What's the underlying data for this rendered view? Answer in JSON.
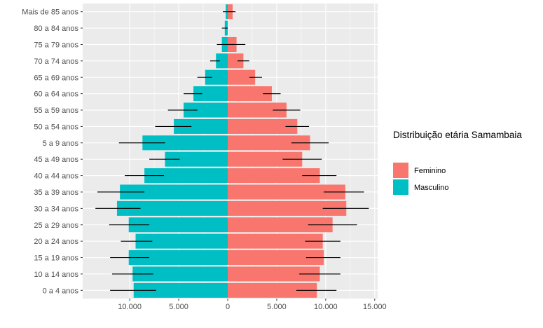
{
  "chart_data": {
    "type": "bar",
    "orientation": "horizontal",
    "categories": [
      "0 a 4 anos",
      "10 a 14 anos",
      "15 a 19 anos",
      "20 a 24 anos",
      "25 a 29 anos",
      "30 a 34 anos",
      "35 a 39 anos",
      "40 a 44 anos",
      "45 a 49 anos",
      "5 a 9 anos",
      "50 a 54 anos",
      "55 a 59 anos",
      "60 a 64 anos",
      "65 a 69 anos",
      "70 a 74 anos",
      "75 a 79 anos",
      "80 a 84 anos",
      "Mais de 85 anos"
    ],
    "series": [
      {
        "name": "Feminino",
        "color": "#F8766D",
        "values": [
          9100,
          9400,
          9800,
          9700,
          10700,
          12100,
          12000,
          9400,
          7600,
          8400,
          7100,
          6000,
          4500,
          2800,
          1600,
          900,
          0,
          500
        ],
        "error_low": [
          7000,
          7300,
          8000,
          7900,
          8200,
          9700,
          9800,
          7600,
          5600,
          6500,
          5900,
          4600,
          3600,
          2200,
          1000,
          0,
          0,
          0
        ],
        "error_high": [
          11100,
          11500,
          11500,
          11500,
          13200,
          14400,
          13900,
          11100,
          9600,
          10300,
          8300,
          7400,
          5400,
          3500,
          2200,
          1800,
          0,
          800
        ]
      },
      {
        "name": "Masculino",
        "color": "#00BFC4",
        "values": [
          9600,
          9700,
          10100,
          9400,
          10100,
          11300,
          11000,
          8500,
          6400,
          8700,
          5500,
          4500,
          3500,
          2300,
          1200,
          600,
          300,
          200
        ],
        "error_low": [
          7300,
          7600,
          8000,
          7700,
          8000,
          8900,
          8500,
          6500,
          4900,
          6400,
          3700,
          3100,
          2600,
          1600,
          800,
          0,
          0,
          0
        ],
        "error_high": [
          12000,
          11800,
          12000,
          10900,
          12100,
          13500,
          13300,
          10500,
          8000,
          11100,
          7400,
          6100,
          4500,
          3100,
          1800,
          1100,
          600,
          500
        ]
      }
    ],
    "xlim": [
      -14800,
      15300
    ],
    "xticks": [
      -10000,
      -5000,
      0,
      5000,
      10000,
      15000
    ],
    "xtick_labels": [
      "10.000",
      "5.000",
      "0",
      "5.000",
      "10.000",
      "15.000"
    ],
    "xlabel": "",
    "ylabel": "",
    "grid": true,
    "legend": {
      "title": "Distribuição etária Samambaia",
      "placement": "right",
      "entries": [
        "Feminino",
        "Masculino"
      ]
    }
  }
}
